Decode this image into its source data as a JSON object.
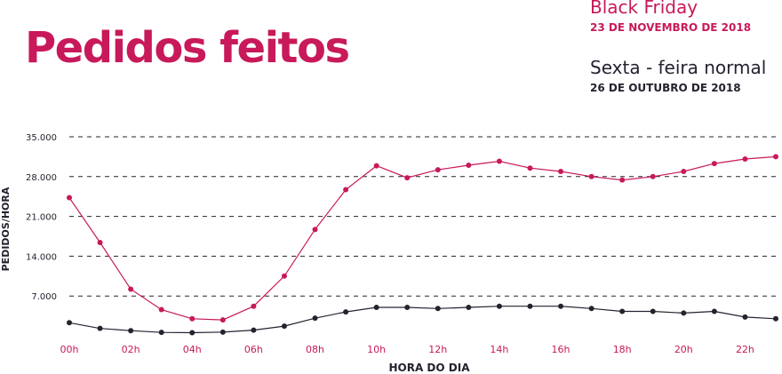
{
  "title": "Pedidos feitos",
  "legend": [
    {
      "name": "Black Friday",
      "date": "23 DE NOVEMBRO DE 2018",
      "color": "#c8195a"
    },
    {
      "name": "Sexta - feira normal",
      "date": "26 DE OUTUBRO DE 2018",
      "color": "#25222f"
    }
  ],
  "colors": {
    "title": "#c8195a",
    "x_tick": "#c8195a",
    "axis_text": "#25222f",
    "grid": "#25222f"
  },
  "chart_data": {
    "type": "line",
    "title": "Pedidos feitos",
    "xlabel": "HORA DO DIA",
    "ylabel": "PEDIDOS/HORA",
    "x": [
      "00h",
      "01h",
      "02h",
      "03h",
      "04h",
      "05h",
      "06h",
      "07h",
      "08h",
      "09h",
      "10h",
      "11h",
      "12h",
      "13h",
      "14h",
      "15h",
      "16h",
      "17h",
      "18h",
      "19h",
      "20h",
      "21h",
      "22h",
      "23h"
    ],
    "x_tick_labels": [
      "00h",
      "02h",
      "04h",
      "06h",
      "08h",
      "10h",
      "12h",
      "14h",
      "16h",
      "18h",
      "20h",
      "22h"
    ],
    "y_tick_labels": [
      "35.000",
      "28.000",
      "21.000",
      "14.000",
      "7.000"
    ],
    "y_ticks": [
      35000,
      28000,
      21000,
      14000,
      7000
    ],
    "ylim": [
      0,
      35000
    ],
    "grid": "horizontal dashed",
    "legend_position": "top-right",
    "series": [
      {
        "name": "Black Friday",
        "values": [
          24300,
          16400,
          8200,
          4600,
          3000,
          2800,
          5200,
          10500,
          18700,
          25700,
          29900,
          27800,
          29200,
          30000,
          30700,
          29500,
          28900,
          28000,
          27400,
          28000,
          28900,
          30300,
          31100,
          31500
        ]
      },
      {
        "name": "Sexta - feira normal",
        "values": [
          2300,
          1300,
          900,
          600,
          550,
          650,
          1000,
          1700,
          3100,
          4200,
          5000,
          5000,
          4800,
          5000,
          5200,
          5200,
          5200,
          4800,
          4300,
          4300,
          4000,
          4300,
          3300,
          3000
        ]
      }
    ]
  }
}
